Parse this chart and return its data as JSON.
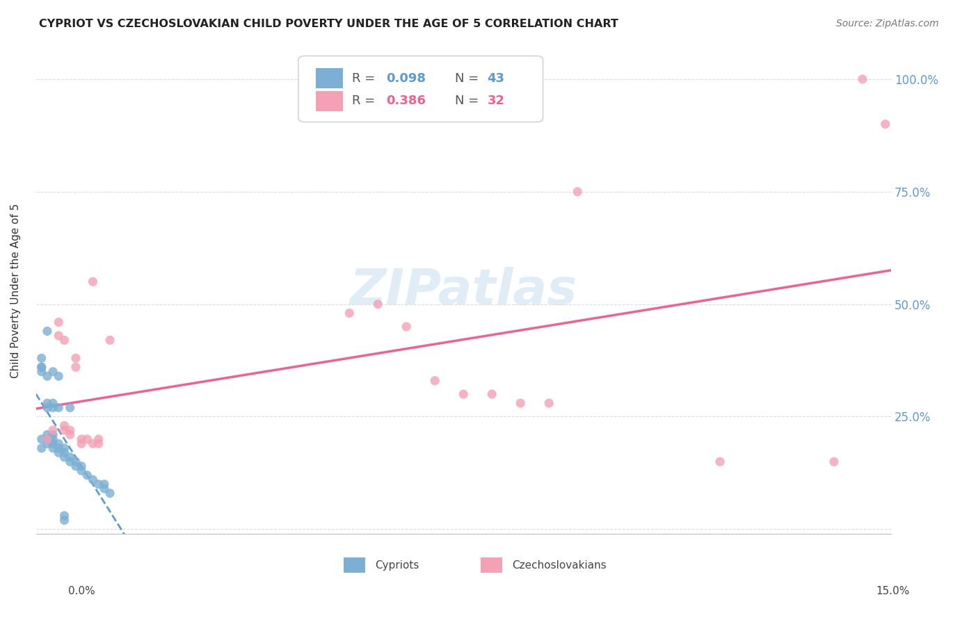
{
  "title": "CYPRIOT VS CZECHOSLOVAKIAN CHILD POVERTY UNDER THE AGE OF 5 CORRELATION CHART",
  "source": "Source: ZipAtlas.com",
  "ylabel": "Child Poverty Under the Age of 5",
  "xlim": [
    0.0,
    0.15
  ],
  "ylim": [
    -0.01,
    1.07
  ],
  "yticks": [
    0.0,
    0.25,
    0.5,
    0.75,
    1.0
  ],
  "ytick_labels_right": [
    "",
    "25.0%",
    "50.0%",
    "75.0%",
    "100.0%"
  ],
  "cypriot_color": "#7bafd4",
  "czechoslovakian_color": "#f4a0b5",
  "cypriot_line_color": "#5b9bd5",
  "czechoslovakian_line_color": "#f06090",
  "watermark": "ZIPatlas",
  "background_color": "#ffffff",
  "grid_color": "#dddddd",
  "cypriot_x": [
    0.001,
    0.001,
    0.001,
    0.002,
    0.002,
    0.002,
    0.002,
    0.003,
    0.003,
    0.003,
    0.003,
    0.003,
    0.004,
    0.004,
    0.004,
    0.004,
    0.005,
    0.005,
    0.005,
    0.006,
    0.006,
    0.006,
    0.007,
    0.007,
    0.008,
    0.008,
    0.009,
    0.01,
    0.011,
    0.012,
    0.012,
    0.013,
    0.001,
    0.001,
    0.001,
    0.002,
    0.002,
    0.002,
    0.003,
    0.003,
    0.004,
    0.005,
    0.005
  ],
  "cypriot_y": [
    0.18,
    0.2,
    0.36,
    0.19,
    0.2,
    0.21,
    0.44,
    0.18,
    0.19,
    0.2,
    0.21,
    0.35,
    0.17,
    0.18,
    0.19,
    0.34,
    0.16,
    0.17,
    0.18,
    0.15,
    0.16,
    0.27,
    0.14,
    0.15,
    0.13,
    0.14,
    0.12,
    0.11,
    0.1,
    0.09,
    0.1,
    0.08,
    0.38,
    0.36,
    0.35,
    0.34,
    0.27,
    0.28,
    0.27,
    0.28,
    0.27,
    0.02,
    0.03
  ],
  "czechoslovakian_x": [
    0.002,
    0.003,
    0.004,
    0.004,
    0.005,
    0.005,
    0.005,
    0.006,
    0.006,
    0.007,
    0.007,
    0.008,
    0.008,
    0.009,
    0.01,
    0.01,
    0.011,
    0.011,
    0.013,
    0.055,
    0.06,
    0.065,
    0.07,
    0.075,
    0.08,
    0.085,
    0.09,
    0.095,
    0.12,
    0.14,
    0.145,
    0.149
  ],
  "czechoslovakian_y": [
    0.2,
    0.22,
    0.46,
    0.43,
    0.22,
    0.42,
    0.23,
    0.22,
    0.21,
    0.38,
    0.36,
    0.2,
    0.19,
    0.2,
    0.19,
    0.55,
    0.19,
    0.2,
    0.42,
    0.48,
    0.5,
    0.45,
    0.33,
    0.3,
    0.3,
    0.28,
    0.28,
    0.75,
    0.15,
    0.15,
    1.0,
    0.9
  ]
}
